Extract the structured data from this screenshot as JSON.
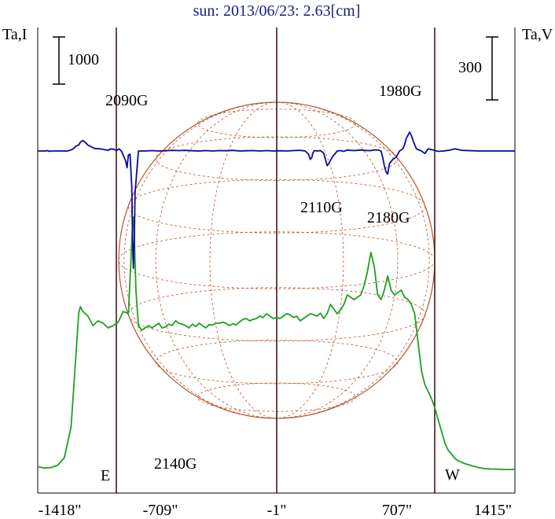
{
  "title": "sun: 2013/06/23: 2.63[cm]",
  "left_axis_label": "Ta,I",
  "right_axis_label": "Ta,V",
  "left_scale_label": "1000",
  "right_scale_label": "300",
  "limb_labels": {
    "east": "E",
    "west": "W"
  },
  "colors": {
    "intensity": "#1fa01f",
    "polarization": "#0a0a9a",
    "disk_grid": "#b5552a",
    "marker_lines": "#3a0a0a"
  },
  "chart_data": {
    "type": "line",
    "title": "sun: 2013/06/23: 2.63[cm]",
    "xlabel": "",
    "x_tick_labels": [
      "-1418\"",
      "-709\"",
      "-1\"",
      "707\"",
      "1415\""
    ],
    "x_ticks": [
      -1418,
      -709,
      -1,
      707,
      1415
    ],
    "xlim": [
      -1418,
      1415
    ],
    "vertical_markers": [
      -1418,
      -1,
      1415
    ],
    "annotations": [
      {
        "text": "2090G",
        "x": -1160,
        "series": "Ta,V"
      },
      {
        "text": "2140G",
        "x": -850,
        "series": "Ta,V"
      },
      {
        "text": "2110G",
        "x": 250,
        "series": "Ta,V"
      },
      {
        "text": "2180G",
        "x": 655,
        "series": "Ta,V"
      },
      {
        "text": "1980G",
        "x": 800,
        "series": "Ta,V"
      }
    ],
    "series": [
      {
        "name": "Ta,I",
        "axis": "left",
        "x": [
          -1418,
          -1380,
          -1340,
          -1300,
          -1260,
          -1220,
          -1190,
          -1175,
          -1165,
          -1150,
          -1120,
          -1090,
          -1060,
          -1030,
          -1000,
          -970,
          -940,
          -910,
          -880,
          -865,
          -855,
          -850,
          -845,
          -835,
          -820,
          -800,
          -780,
          -760,
          -740,
          -720,
          -700,
          -680,
          -660,
          -640,
          -620,
          -600,
          -580,
          -560,
          -540,
          -520,
          -500,
          -480,
          -460,
          -440,
          -420,
          -400,
          -380,
          -360,
          -340,
          -320,
          -300,
          -280,
          -260,
          -240,
          -220,
          -200,
          -180,
          -160,
          -140,
          -120,
          -100,
          -80,
          -60,
          -40,
          -20,
          0,
          20,
          40,
          60,
          80,
          100,
          120,
          140,
          160,
          180,
          200,
          220,
          240,
          260,
          280,
          300,
          320,
          340,
          360,
          380,
          400,
          420,
          440,
          460,
          480,
          500,
          520,
          540,
          560,
          580,
          600,
          620,
          640,
          660,
          680,
          700,
          720,
          740,
          760,
          780,
          800,
          820,
          840,
          860,
          880,
          900,
          920,
          940,
          960,
          980,
          1000,
          1020,
          1040,
          1060,
          1080,
          1100,
          1120,
          1140,
          1160,
          1180,
          1200,
          1230,
          1270,
          1310,
          1350,
          1415
        ],
        "y": [
          60,
          30,
          40,
          90,
          250,
          900,
          2500,
          3300,
          3450,
          3350,
          3250,
          3050,
          3150,
          3100,
          3000,
          3050,
          3120,
          3350,
          3300,
          4400,
          5200,
          5350,
          5000,
          3800,
          3050,
          2950,
          3000,
          3050,
          3000,
          3050,
          3100,
          3000,
          3020,
          3080,
          3050,
          3150,
          3100,
          3080,
          3050,
          3000,
          3080,
          3030,
          3100,
          3050,
          3000,
          3070,
          3060,
          3100,
          3100,
          3120,
          3100,
          3050,
          3090,
          3060,
          3130,
          3180,
          3200,
          3150,
          3180,
          3200,
          3250,
          3220,
          3300,
          3250,
          3200,
          3220,
          3200,
          3250,
          3300,
          3280,
          3220,
          3250,
          3150,
          3200,
          3250,
          3300,
          3280,
          3250,
          3310,
          3200,
          3300,
          3500,
          3400,
          3300,
          3380,
          3500,
          3700,
          3650,
          3600,
          3650,
          3700,
          3900,
          4200,
          4600,
          4300,
          3700,
          3600,
          3800,
          4100,
          3800,
          3700,
          3750,
          3800,
          3650,
          3600,
          3500,
          3300,
          2700,
          2100,
          1800,
          1650,
          1500,
          1300,
          1050,
          800,
          550,
          400,
          320,
          230,
          180,
          150,
          120,
          100,
          80,
          60,
          40,
          20,
          10,
          5,
          0,
          0
        ]
      },
      {
        "name": "Ta,V",
        "axis": "right",
        "x": [
          -1418,
          -1390,
          -1370,
          -1360,
          -1350,
          -1340,
          -1300,
          -1240,
          -1220,
          -1205,
          -1190,
          -1175,
          -1165,
          -1150,
          -1140,
          -1120,
          -1100,
          -1080,
          -1050,
          -1030,
          -1000,
          -985,
          -965,
          -950,
          -935,
          -920,
          -905,
          -895,
          -888,
          -880,
          -870,
          -860,
          -855,
          -850,
          -845,
          -840,
          -820,
          -780,
          -740,
          -700,
          -660,
          -620,
          -580,
          -540,
          -500,
          -460,
          -420,
          -380,
          -340,
          -300,
          -260,
          -220,
          -180,
          -140,
          -100,
          -60,
          -20,
          20,
          60,
          100,
          140,
          170,
          190,
          200,
          210,
          215,
          225,
          240,
          260,
          280,
          290,
          300,
          310,
          330,
          360,
          380,
          400,
          420,
          440,
          460,
          480,
          500,
          520,
          540,
          560,
          580,
          600,
          620,
          630,
          640,
          650,
          660,
          670,
          690,
          710,
          730,
          750,
          760,
          770,
          790,
          800,
          810,
          830,
          860,
          880,
          900,
          930,
          960,
          990,
          1020,
          1060,
          1100,
          1200,
          1300,
          1415
        ],
        "y": [
          0,
          0,
          0,
          2,
          -2,
          0,
          0,
          0,
          5,
          12,
          24,
          28,
          42,
          50,
          44,
          28,
          20,
          12,
          10,
          8,
          3,
          10,
          8,
          2,
          10,
          -2,
          -30,
          -50,
          -80,
          -20,
          -15,
          -170,
          -420,
          -560,
          -430,
          -200,
          0,
          0,
          2,
          0,
          1,
          3,
          2,
          3,
          1,
          0,
          2,
          0,
          2,
          1,
          3,
          0,
          1,
          2,
          0,
          2,
          0,
          1,
          0,
          2,
          3,
          0,
          -15,
          -40,
          -30,
          -10,
          2,
          0,
          2,
          -10,
          -40,
          -70,
          -60,
          -30,
          0,
          2,
          -2,
          5,
          3,
          2,
          3,
          5,
          3,
          2,
          2,
          5,
          5,
          0,
          -30,
          -70,
          -100,
          -110,
          -60,
          -40,
          -30,
          0,
          10,
          30,
          60,
          90,
          75,
          50,
          10,
          0,
          -12,
          10,
          5,
          -2,
          0,
          3,
          10,
          3,
          0,
          0,
          0
        ]
      }
    ],
    "left_axis_scale_bar": 1000,
    "right_axis_scale_bar": 300,
    "grid": false,
    "legend": "none"
  }
}
